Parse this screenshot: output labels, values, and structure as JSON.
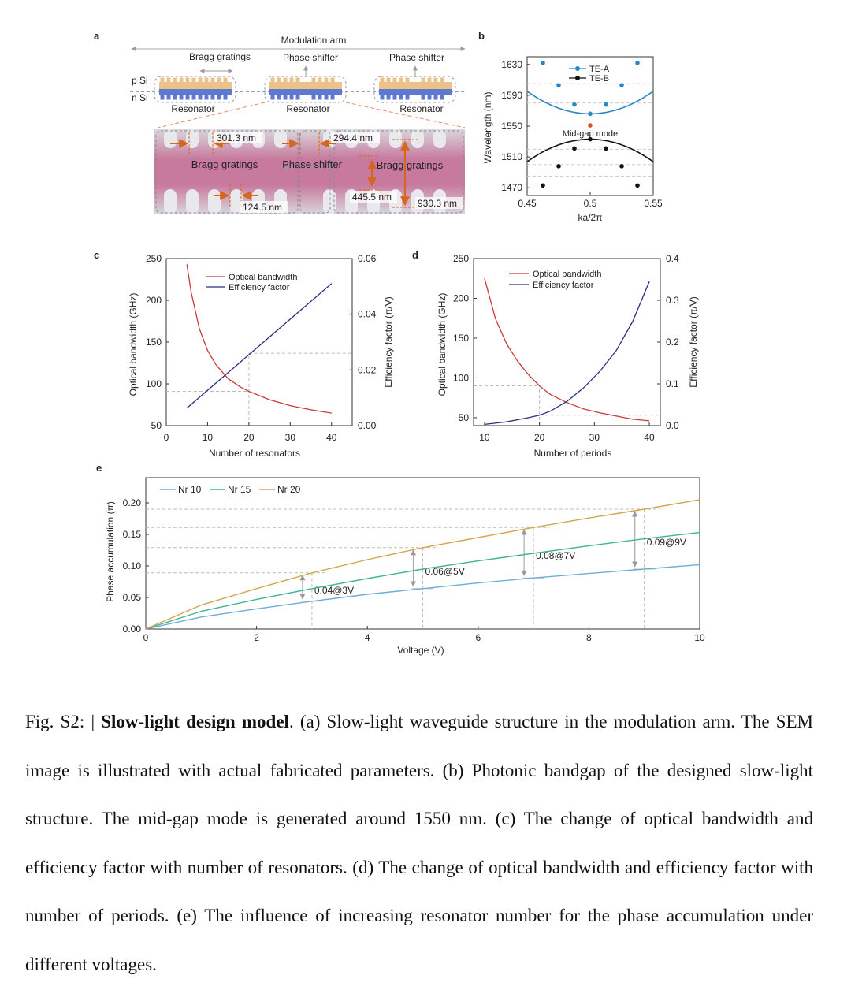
{
  "panel_a": {
    "letter": "a",
    "modulation_arm": "Modulation arm",
    "bragg_gratings": "Bragg gratings",
    "phase_shifter_1": "Phase shifter",
    "phase_shifter_2": "Phase shifter",
    "p_si": "p Si",
    "n_si": "n Si",
    "resonator_1": "Resonator",
    "resonator_2": "Resonator",
    "resonator_3": "Resonator",
    "sem": {
      "dim_301": "301.3 nm",
      "dim_294": "294.4 nm",
      "dim_124": "124.5 nm",
      "dim_445": "445.5 nm",
      "dim_930": "930.3 nm",
      "bragg_left": "Bragg gratings",
      "phase_shifter": "Phase shifter",
      "bragg_right": "Bragg gratings"
    }
  },
  "chart_data": [
    {
      "panel": "b",
      "type": "line",
      "xlabel": "ka/2π",
      "ylabel": "Wavelength (nm)",
      "xlim": [
        0.45,
        0.55
      ],
      "ylim": [
        1460,
        1640
      ],
      "xticks": [
        "0.45",
        "0.5",
        "0.55"
      ],
      "yticks": [
        "1470",
        "1510",
        "1550",
        "1590",
        "1630"
      ],
      "series": [
        {
          "name": "TE-A",
          "color": "#2b87c2",
          "x": [
            0.4625,
            0.475,
            0.4875,
            0.5,
            0.5125,
            0.525,
            0.5375
          ],
          "y": [
            1632,
            1603,
            1578,
            1566,
            1578,
            1603,
            1632
          ]
        },
        {
          "name": "TE-B",
          "color": "#111111",
          "x": [
            0.4625,
            0.475,
            0.4875,
            0.5,
            0.5125,
            0.525,
            0.5375
          ],
          "y": [
            1473,
            1498,
            1521,
            1533,
            1521,
            1498,
            1473
          ]
        }
      ],
      "annotation": "Mid-gap mode",
      "midgap_point": {
        "x": 0.5,
        "y": 1551,
        "color": "#d4502c"
      }
    },
    {
      "panel": "c",
      "type": "line",
      "xlabel": "Number of resonators",
      "ylabel": "Optical bandwidth (GHz)",
      "y2label": "Efficiency factor (π/V)",
      "xlim": [
        0,
        45
      ],
      "ylim": [
        50,
        250
      ],
      "y2lim": [
        0,
        0.06
      ],
      "xticks": [
        "0",
        "10",
        "20",
        "30",
        "40"
      ],
      "yticks": [
        "50",
        "100",
        "150",
        "200",
        "250"
      ],
      "y2ticks": [
        "0.00",
        "0.02",
        "0.04",
        "0.06"
      ],
      "series": [
        {
          "name": "Optical bandwidth",
          "color": "#c83a3a",
          "axis": "left",
          "x": [
            5,
            6,
            8,
            10,
            12,
            15,
            18,
            20,
            25,
            30,
            35,
            40
          ],
          "y": [
            243,
            210,
            166,
            140,
            123,
            106,
            96,
            91,
            81,
            74,
            69,
            65
          ]
        },
        {
          "name": "Efficiency factor",
          "color": "#2a2f7a",
          "axis": "right",
          "x": [
            5,
            40
          ],
          "y": [
            0.0063,
            0.051
          ]
        }
      ],
      "guide_x": 20,
      "guide_y_left": 91,
      "guide_y_right": 0.026
    },
    {
      "panel": "d",
      "type": "line",
      "xlabel": "Number of periods",
      "ylabel": "Optical bandwidth (GHz)",
      "y2label": "Efficiency factor (π/V)",
      "xlim": [
        8,
        42
      ],
      "ylim": [
        40,
        250
      ],
      "y2lim": [
        0,
        0.4
      ],
      "xticks": [
        "10",
        "20",
        "30",
        "40"
      ],
      "yticks": [
        "50",
        "100",
        "150",
        "200",
        "250"
      ],
      "y2ticks": [
        "0.0",
        "0.1",
        "0.2",
        "0.3",
        "0.4"
      ],
      "series": [
        {
          "name": "Optical bandwidth",
          "color": "#c83a3a",
          "axis": "left",
          "x": [
            10,
            12,
            14,
            16,
            18,
            20,
            22,
            25,
            28,
            31,
            34,
            37,
            40
          ],
          "y": [
            225,
            174,
            143,
            121,
            104,
            90,
            79,
            69,
            61,
            56,
            52,
            48,
            46
          ]
        },
        {
          "name": "Efficiency factor",
          "color": "#2a2f7a",
          "axis": "right",
          "x": [
            10,
            14,
            18,
            20,
            22,
            25,
            28,
            31,
            34,
            37,
            40
          ],
          "y": [
            0.003,
            0.009,
            0.019,
            0.025,
            0.035,
            0.058,
            0.09,
            0.13,
            0.18,
            0.25,
            0.345
          ]
        }
      ],
      "guide_x": 20,
      "guide_y_left": 90,
      "guide_y_right": 0.025
    },
    {
      "panel": "e",
      "type": "line",
      "xlabel": "Voltage (V)",
      "ylabel": "Phase accumulation (π)",
      "xlim": [
        0,
        10
      ],
      "ylim": [
        0,
        0.24
      ],
      "xticks": [
        "0",
        "2",
        "4",
        "6",
        "8",
        "10"
      ],
      "yticks": [
        "0.00",
        "0.05",
        "0.10",
        "0.15",
        "0.20"
      ],
      "series": [
        {
          "name": "Nr 10",
          "color": "#6baed6",
          "x": [
            0,
            1,
            2,
            3,
            4,
            5,
            6,
            7,
            8,
            9,
            10
          ],
          "y": [
            0,
            0.019,
            0.032,
            0.044,
            0.055,
            0.064,
            0.073,
            0.081,
            0.088,
            0.095,
            0.102
          ]
        },
        {
          "name": "Nr 15",
          "color": "#3fb68c",
          "x": [
            0,
            1,
            2,
            3,
            4,
            5,
            6,
            7,
            8,
            9,
            10
          ],
          "y": [
            0,
            0.028,
            0.047,
            0.064,
            0.08,
            0.095,
            0.108,
            0.12,
            0.132,
            0.143,
            0.153
          ]
        },
        {
          "name": "Nr 20",
          "color": "#d3a649",
          "x": [
            0,
            1,
            2,
            3,
            4,
            5,
            6,
            7,
            8,
            9,
            10
          ],
          "y": [
            0,
            0.038,
            0.064,
            0.089,
            0.11,
            0.129,
            0.145,
            0.161,
            0.176,
            0.19,
            0.205
          ]
        }
      ],
      "annotations": [
        {
          "text": "0.04@3V",
          "x": 3,
          "y1": 0.044,
          "y2": 0.089
        },
        {
          "text": "0.06@5V",
          "x": 5,
          "y1": 0.064,
          "y2": 0.129
        },
        {
          "text": "0.08@7V",
          "x": 7,
          "y1": 0.081,
          "y2": 0.161
        },
        {
          "text": "0.09@9V",
          "x": 9,
          "y1": 0.095,
          "y2": 0.19
        }
      ]
    }
  ],
  "caption": {
    "prefix": "Fig. S2: | ",
    "title": "Slow-light design model",
    "body": ". (a) Slow-light waveguide structure in the modulation arm. The SEM image is illustrated with actual fabricated parameters. (b) Photonic bandgap of the designed slow-light structure. The mid-gap mode is generated around 1550 nm. (c) The change of optical bandwidth and efficiency factor with number of resonators. (d) The change of optical bandwidth and efficiency factor with number of periods. (e) The influence of increasing resonator number for the phase accumulation under different voltages."
  }
}
